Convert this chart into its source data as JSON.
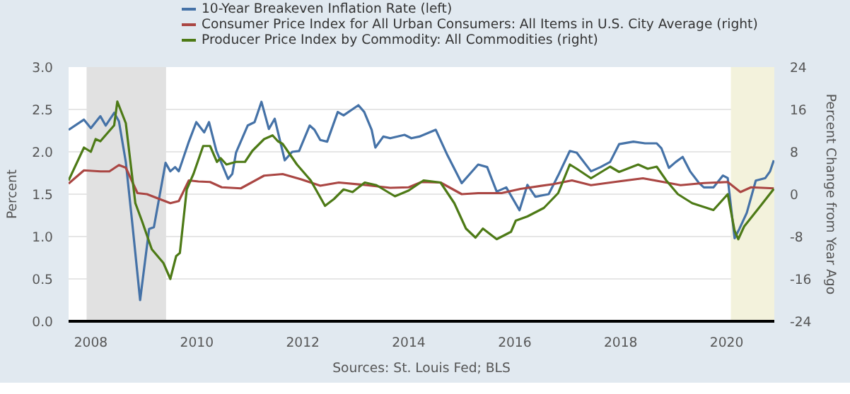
{
  "chart_data": {
    "type": "line",
    "ylabel": "Percent",
    "y2label": "Percent Change from Year Ago",
    "xlim": [
      2007.58,
      2020.9
    ],
    "xticks": [
      2008,
      2010,
      2012,
      2014,
      2016,
      2018,
      2020
    ],
    "ylim": [
      0,
      3.0
    ],
    "yticks": [
      {
        "value": 0,
        "label": "0.0"
      },
      0.5,
      {
        "value": 1,
        "label": "1.0"
      },
      1.5,
      {
        "value": 2,
        "label": "2.0"
      },
      2.5,
      {
        "value": 3,
        "label": "3.0"
      }
    ],
    "y2lim": [
      -24,
      24
    ],
    "y2ticks": [
      -24,
      -16,
      -8,
      0,
      8,
      16,
      24
    ],
    "grid": "y",
    "legend": "top",
    "marker": "none",
    "line_style": "solid",
    "annotations": [
      "Sources: St. Louis Fed; BLS"
    ],
    "bands": [
      {
        "axis": "x",
        "from": 2007.92,
        "to": 2009.42,
        "color": "#e1e1e1"
      },
      {
        "axis": "x",
        "from": 2020.08,
        "to": 2020.9,
        "color": "#f3f2dc"
      }
    ],
    "series": [
      {
        "name": "10-Year Breakeven Inflation Rate (left)",
        "color": "#4572a7",
        "x": [
          2007.58,
          2007.87,
          2008.0,
          2008.18,
          2008.28,
          2008.44,
          2008.53,
          2008.66,
          2008.78,
          2008.93,
          2009.1,
          2009.19,
          2009.41,
          2009.5,
          2009.59,
          2009.66,
          2009.85,
          2009.99,
          2010.14,
          2010.23,
          2010.37,
          2010.59,
          2010.67,
          2010.74,
          2010.96,
          2011.09,
          2011.22,
          2011.36,
          2011.47,
          2011.66,
          2011.8,
          2011.93,
          2012.13,
          2012.22,
          2012.33,
          2012.46,
          2012.66,
          2012.77,
          2013.05,
          2013.16,
          2013.3,
          2013.37,
          2013.52,
          2013.65,
          2013.92,
          2014.05,
          2014.2,
          2014.51,
          2014.73,
          2015.0,
          2015.31,
          2015.48,
          2015.66,
          2015.84,
          2016.09,
          2016.24,
          2016.39,
          2016.64,
          2016.82,
          2017.04,
          2017.17,
          2017.44,
          2017.62,
          2017.8,
          2017.97,
          2018.24,
          2018.46,
          2018.68,
          2018.77,
          2018.91,
          2019.04,
          2019.17,
          2019.31,
          2019.48,
          2019.57,
          2019.75,
          2019.93,
          2020.02,
          2020.15,
          2020.24,
          2020.38,
          2020.55,
          2020.73,
          2020.82,
          2020.89
        ],
        "values": [
          2.26,
          2.38,
          2.28,
          2.42,
          2.31,
          2.46,
          2.36,
          1.88,
          1.17,
          0.25,
          1.09,
          1.11,
          1.87,
          1.77,
          1.82,
          1.77,
          2.12,
          2.35,
          2.23,
          2.35,
          2.01,
          1.68,
          1.74,
          1.99,
          2.31,
          2.35,
          2.59,
          2.27,
          2.39,
          1.9,
          2.0,
          2.01,
          2.31,
          2.26,
          2.14,
          2.12,
          2.47,
          2.43,
          2.55,
          2.47,
          2.26,
          2.05,
          2.18,
          2.16,
          2.2,
          2.16,
          2.18,
          2.26,
          1.96,
          1.63,
          1.85,
          1.82,
          1.53,
          1.58,
          1.31,
          1.61,
          1.47,
          1.5,
          1.72,
          2.01,
          1.99,
          1.77,
          1.82,
          1.88,
          2.09,
          2.12,
          2.1,
          2.1,
          2.04,
          1.81,
          1.88,
          1.94,
          1.77,
          1.63,
          1.58,
          1.58,
          1.72,
          1.69,
          0.98,
          1.09,
          1.28,
          1.66,
          1.69,
          1.77,
          1.9
        ]
      },
      {
        "name": "Consumer Price Index for All Urban Consumers: All Items in U.S. City Average (right)",
        "color": "#aa4643",
        "axis": "y2",
        "x": [
          2007.58,
          2007.87,
          2008.18,
          2008.35,
          2008.53,
          2008.66,
          2008.88,
          2009.06,
          2009.24,
          2009.5,
          2009.66,
          2009.85,
          2010.03,
          2010.25,
          2010.47,
          2010.83,
          2011.27,
          2011.62,
          2011.97,
          2012.33,
          2012.68,
          2013.21,
          2013.65,
          2014.0,
          2014.24,
          2014.6,
          2015.0,
          2015.31,
          2015.75,
          2016.11,
          2016.73,
          2017.08,
          2017.44,
          2017.88,
          2018.42,
          2018.86,
          2019.13,
          2019.57,
          2020.02,
          2020.26,
          2020.46,
          2020.89
        ],
        "values": [
          2.0,
          4.5,
          4.3,
          4.3,
          5.5,
          5.0,
          0.2,
          0,
          -0.7,
          -1.7,
          -1.3,
          2.6,
          2.4,
          2.3,
          1.3,
          1.1,
          3.5,
          3.8,
          2.8,
          1.6,
          2.2,
          1.7,
          1.2,
          1.3,
          2.3,
          2.2,
          0,
          0.2,
          0.2,
          1.0,
          1.9,
          2.6,
          1.7,
          2.3,
          3.0,
          2.2,
          1.7,
          2.1,
          2.3,
          0.4,
          1.3,
          1.1
        ]
      },
      {
        "name": "Producer Price Index by Commodity: All Commodities (right)",
        "color": "#4d7a16",
        "axis": "y2",
        "x": [
          2007.58,
          2007.87,
          2008.0,
          2008.09,
          2008.18,
          2008.44,
          2008.5,
          2008.66,
          2008.84,
          2008.97,
          2009.15,
          2009.37,
          2009.5,
          2009.61,
          2009.68,
          2009.81,
          2009.94,
          2010.12,
          2010.25,
          2010.38,
          2010.45,
          2010.56,
          2010.74,
          2010.91,
          2011.05,
          2011.27,
          2011.43,
          2011.53,
          2011.62,
          2011.89,
          2012.15,
          2012.42,
          2012.59,
          2012.77,
          2012.94,
          2013.17,
          2013.39,
          2013.74,
          2014.0,
          2014.28,
          2014.6,
          2014.86,
          2015.08,
          2015.26,
          2015.4,
          2015.66,
          2015.93,
          2016.02,
          2016.24,
          2016.55,
          2016.82,
          2017.04,
          2017.17,
          2017.44,
          2017.8,
          2017.97,
          2018.33,
          2018.51,
          2018.68,
          2018.86,
          2019.08,
          2019.35,
          2019.75,
          2020.02,
          2020.15,
          2020.22,
          2020.33,
          2020.64,
          2020.89
        ],
        "values": [
          2.6,
          8.8,
          8.0,
          10.4,
          10.0,
          13.0,
          17.5,
          13.4,
          -1.7,
          -5.2,
          -10.4,
          -13.0,
          -16.0,
          -11.7,
          -11.1,
          0.9,
          3.9,
          9.1,
          9.1,
          6.1,
          6.8,
          5.6,
          6.1,
          6.1,
          8.2,
          10.4,
          11.1,
          10.0,
          9.5,
          5.6,
          2.6,
          -2.2,
          -0.9,
          0.9,
          0.4,
          2.2,
          1.7,
          -0.4,
          0.7,
          2.6,
          2.2,
          -1.7,
          -6.5,
          -8.2,
          -6.5,
          -8.5,
          -7.1,
          -5.0,
          -4.2,
          -2.6,
          0.2,
          5.6,
          4.8,
          3.0,
          5.2,
          4.2,
          5.6,
          4.8,
          5.2,
          2.6,
          0,
          -1.7,
          -3.0,
          0,
          -6.9,
          -8.5,
          -6.1,
          -2.2,
          1.0
        ]
      }
    ]
  }
}
